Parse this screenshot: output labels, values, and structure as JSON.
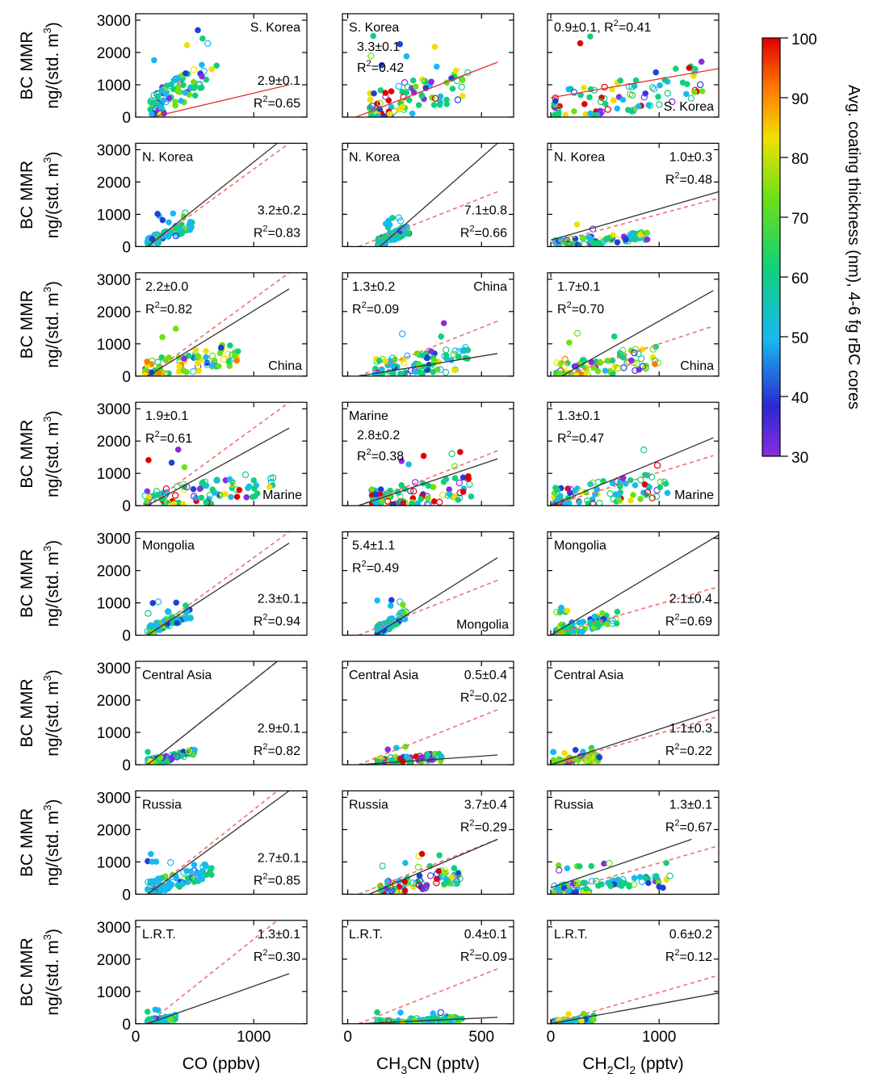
{
  "chart_data": {
    "type": "scatter",
    "y_axis": {
      "label_line1": "BC MMR",
      "label_line2": "ng/(std. m",
      "label_sup": "3",
      "label_close": ")",
      "ylim": [
        0,
        3200
      ],
      "ticks": [
        0,
        1000,
        2000,
        3000
      ]
    },
    "columns": [
      {
        "xlabel_pre": "CO (ppbv)",
        "xlabel_sub": "",
        "xlabel_post": "",
        "xlim": [
          0,
          1450
        ],
        "ticks": [
          0,
          1000
        ],
        "tick_labels": [
          "0",
          "1000"
        ]
      },
      {
        "xlabel_pre": "CH",
        "xlabel_sub": "3",
        "xlabel_post": "CN (pptv)",
        "xlim": [
          -20,
          620
        ],
        "ticks": [
          0,
          500
        ],
        "tick_labels": [
          "0",
          "500"
        ]
      },
      {
        "xlabel_pre": "CH",
        "xlabel_sub": "2",
        "xlabel_post": "Cl",
        "xlabel_sub2": "2",
        "xlabel_post2": " (pptv)",
        "xlim": [
          -30,
          1550
        ],
        "ticks": [
          0,
          1000
        ],
        "tick_labels": [
          "0",
          "1000"
        ]
      }
    ],
    "colorbar": {
      "title": "Avg. coating thickness (nm), 4-6 fg rBC cores",
      "min": 30,
      "max": 100,
      "ticks": [
        30,
        40,
        50,
        60,
        70,
        80,
        90,
        100
      ],
      "colors": [
        "#8a2be2",
        "#1f3fd6",
        "#19b8f0",
        "#10d07a",
        "#6ee014",
        "#f0e000",
        "#ff7a00",
        "#e00000"
      ]
    },
    "panels": [
      {
        "region": "S. Korea",
        "row": 0,
        "col": 0,
        "slope": "2.9±0.1",
        "r2": "0.65",
        "region_pos": "tr",
        "stats_pos": "br",
        "solid": [
          [
            140,
            0
          ],
          [
            1300,
            1000
          ]
        ],
        "solid_color": "red",
        "dashed": null,
        "cloud": {
          "x0": 120,
          "x1": 700,
          "ymax": 2700,
          "bias": 80,
          "tone": "mixed"
        }
      },
      {
        "region": "S. Korea",
        "row": 0,
        "col": 1,
        "slope": "3.3±0.1",
        "r2": "0.42",
        "region_pos": "tl",
        "stats_pos": "tl2",
        "solid": [
          [
            30,
            0
          ],
          [
            560,
            1700
          ]
        ],
        "solid_color": "red",
        "dashed": null,
        "cloud": {
          "x0": 80,
          "x1": 450,
          "ymax": 2600,
          "bias": 60,
          "tone": "mixed_red"
        }
      },
      {
        "region": "S. Korea",
        "row": 0,
        "col": 2,
        "slope": "0.9±0.1",
        "r2": "0.41",
        "region_pos": "br",
        "stats_pos": "top_inline",
        "solid": [
          [
            0,
            600
          ],
          [
            1550,
            1500
          ]
        ],
        "solid_color": "red",
        "dashed": null,
        "cloud": {
          "x0": 30,
          "x1": 1400,
          "ymax": 2800,
          "bias": 60,
          "tone": "mixed_red"
        }
      },
      {
        "region": "N. Korea",
        "row": 1,
        "col": 0,
        "slope": "3.2±0.2",
        "r2": "0.83",
        "region_pos": "tl",
        "stats_pos": "br",
        "solid": [
          [
            100,
            0
          ],
          [
            1200,
            3200
          ]
        ],
        "solid_color": "black",
        "dashed": [
          [
            100,
            0
          ],
          [
            1300,
            3200
          ]
        ],
        "cloud": {
          "x0": 100,
          "x1": 480,
          "ymax": 1050,
          "bias": 92,
          "tone": "cool"
        }
      },
      {
        "region": "N. Korea",
        "row": 1,
        "col": 1,
        "slope": "7.1±0.8",
        "r2": "0.66",
        "region_pos": "tl",
        "stats_pos": "br",
        "solid": [
          [
            120,
            0
          ],
          [
            560,
            3200
          ]
        ],
        "solid_color": "black",
        "dashed": [
          [
            40,
            0
          ],
          [
            560,
            1700
          ]
        ],
        "cloud": {
          "x0": 110,
          "x1": 230,
          "ymax": 900,
          "bias": 85,
          "tone": "cool"
        }
      },
      {
        "region": "N. Korea",
        "row": 1,
        "col": 2,
        "slope": "1.0±0.3",
        "r2": "0.48",
        "region_pos": "tl",
        "stats_pos": "tr",
        "solid": [
          [
            0,
            200
          ],
          [
            1550,
            1700
          ]
        ],
        "solid_color": "black",
        "dashed": [
          [
            0,
            100
          ],
          [
            1550,
            1500
          ]
        ],
        "cloud": {
          "x0": 30,
          "x1": 900,
          "ymax": 700,
          "bias": 70,
          "tone": "mixed"
        }
      },
      {
        "region": "China",
        "row": 2,
        "col": 0,
        "slope": "2.2±0.0",
        "r2": "0.82",
        "region_pos": "br",
        "stats_pos": "tl",
        "solid": [
          [
            100,
            0
          ],
          [
            1300,
            2700
          ]
        ],
        "solid_color": "black",
        "dashed": [
          [
            100,
            0
          ],
          [
            1300,
            3200
          ]
        ],
        "cloud": {
          "x0": 80,
          "x1": 880,
          "ymax": 1700,
          "bias": 60,
          "tone": "warm"
        }
      },
      {
        "region": "China",
        "row": 2,
        "col": 1,
        "slope": "1.3±0.2",
        "r2": "0.09",
        "region_pos": "tr",
        "stats_pos": "tl",
        "solid": [
          [
            40,
            0
          ],
          [
            560,
            700
          ]
        ],
        "solid_color": "black",
        "dashed": [
          [
            40,
            0
          ],
          [
            560,
            1700
          ]
        ],
        "cloud": {
          "x0": 100,
          "x1": 450,
          "ymax": 1700,
          "bias": 45,
          "tone": "mixed"
        }
      },
      {
        "region": "China",
        "row": 2,
        "col": 2,
        "slope": "1.7±0.1",
        "r2": "0.70",
        "region_pos": "br",
        "stats_pos": "tl",
        "solid": [
          [
            100,
            0
          ],
          [
            1500,
            2650
          ]
        ],
        "solid_color": "black",
        "dashed": [
          [
            100,
            0
          ],
          [
            1500,
            1550
          ]
        ],
        "cloud": {
          "x0": 50,
          "x1": 1000,
          "ymax": 1600,
          "bias": 55,
          "tone": "warm"
        }
      },
      {
        "region": "Marine",
        "row": 3,
        "col": 0,
        "slope": "1.9±0.1",
        "r2": "0.61",
        "region_pos": "br",
        "stats_pos": "tl",
        "solid": [
          [
            100,
            0
          ],
          [
            1300,
            2400
          ]
        ],
        "solid_color": "black",
        "dashed": [
          [
            100,
            0
          ],
          [
            1300,
            3200
          ]
        ],
        "cloud": {
          "x0": 80,
          "x1": 1200,
          "ymax": 1800,
          "bias": 55,
          "tone": "mixed_red"
        }
      },
      {
        "region": "Marine",
        "row": 3,
        "col": 1,
        "slope": "2.8±0.2",
        "r2": "0.38",
        "region_pos": "tl",
        "stats_pos": "tl2",
        "solid": [
          [
            40,
            0
          ],
          [
            560,
            1450
          ]
        ],
        "solid_color": "black",
        "dashed": [
          [
            40,
            0
          ],
          [
            560,
            1700
          ]
        ],
        "cloud": {
          "x0": 90,
          "x1": 470,
          "ymax": 1700,
          "bias": 50,
          "tone": "mixed_red"
        }
      },
      {
        "region": "Marine",
        "row": 3,
        "col": 2,
        "slope": "1.3±0.1",
        "r2": "0.47",
        "region_pos": "br",
        "stats_pos": "tl",
        "solid": [
          [
            0,
            0
          ],
          [
            1500,
            2100
          ]
        ],
        "solid_color": "black",
        "dashed": [
          [
            0,
            0
          ],
          [
            1500,
            1550
          ]
        ],
        "cloud": {
          "x0": 30,
          "x1": 1100,
          "ymax": 1800,
          "bias": 55,
          "tone": "mixed_red"
        }
      },
      {
        "region": "Mongolia",
        "row": 4,
        "col": 0,
        "slope": "2.3±0.1",
        "r2": "0.94",
        "region_pos": "tl",
        "stats_pos": "br",
        "solid": [
          [
            100,
            0
          ],
          [
            1300,
            2850
          ]
        ],
        "solid_color": "black",
        "dashed": [
          [
            100,
            0
          ],
          [
            1300,
            3200
          ]
        ],
        "cloud": {
          "x0": 100,
          "x1": 470,
          "ymax": 1050,
          "bias": 92,
          "tone": "cool"
        }
      },
      {
        "region": "Mongolia",
        "row": 4,
        "col": 1,
        "slope": "5.4±1.1",
        "r2": "0.49",
        "region_pos": "br",
        "stats_pos": "tl",
        "solid": [
          [
            100,
            0
          ],
          [
            560,
            2400
          ]
        ],
        "solid_color": "black",
        "dashed": [
          [
            40,
            0
          ],
          [
            560,
            1700
          ]
        ],
        "cloud": {
          "x0": 110,
          "x1": 220,
          "ymax": 1100,
          "bias": 85,
          "tone": "cool"
        }
      },
      {
        "region": "Mongolia",
        "row": 4,
        "col": 2,
        "slope": "2.1±0.4",
        "r2": "0.69",
        "region_pos": "tl",
        "stats_pos": "br",
        "solid": [
          [
            0,
            0
          ],
          [
            1550,
            3100
          ]
        ],
        "solid_color": "black",
        "dashed": [
          [
            0,
            0
          ],
          [
            1550,
            1500
          ]
        ],
        "cloud": {
          "x0": 50,
          "x1": 650,
          "ymax": 1100,
          "bias": 75,
          "tone": "mixed"
        }
      },
      {
        "region": "Central Asia",
        "row": 5,
        "col": 0,
        "slope": "2.9±0.1",
        "r2": "0.82",
        "region_pos": "tl",
        "stats_pos": "br",
        "solid": [
          [
            100,
            0
          ],
          [
            1200,
            3200
          ]
        ],
        "solid_color": "black",
        "dashed": [
          [
            100,
            0
          ],
          [
            1200,
            3200
          ]
        ],
        "cloud": {
          "x0": 100,
          "x1": 500,
          "ymax": 650,
          "bias": 85,
          "tone": "mixed"
        }
      },
      {
        "region": "Central Asia",
        "row": 5,
        "col": 1,
        "slope": "0.5±0.4",
        "r2": "0.02",
        "region_pos": "tl",
        "stats_pos": "tr_inline",
        "solid": [
          [
            40,
            0
          ],
          [
            560,
            300
          ]
        ],
        "solid_color": "black",
        "dashed": [
          [
            40,
            0
          ],
          [
            560,
            1700
          ]
        ],
        "cloud": {
          "x0": 110,
          "x1": 360,
          "ymax": 600,
          "bias": 60,
          "tone": "mixed_red"
        }
      },
      {
        "region": "Central Asia",
        "row": 5,
        "col": 2,
        "slope": "1.1±0.3",
        "r2": "0.22",
        "region_pos": "tl",
        "stats_pos": "br",
        "solid": [
          [
            0,
            0
          ],
          [
            1550,
            1700
          ]
        ],
        "solid_color": "black",
        "dashed": [
          [
            0,
            0
          ],
          [
            1550,
            1500
          ]
        ],
        "cloud": {
          "x0": 20,
          "x1": 450,
          "ymax": 550,
          "bias": 60,
          "tone": "warm"
        }
      },
      {
        "region": "Russia",
        "row": 6,
        "col": 0,
        "slope": "2.7±0.1",
        "r2": "0.85",
        "region_pos": "tl",
        "stats_pos": "br",
        "solid": [
          [
            100,
            0
          ],
          [
            1300,
            3200
          ]
        ],
        "solid_color": "black",
        "dashed": [
          [
            100,
            0
          ],
          [
            1200,
            3200
          ]
        ],
        "cloud": {
          "x0": 100,
          "x1": 650,
          "ymax": 1400,
          "bias": 80,
          "tone": "cool"
        }
      },
      {
        "region": "Russia",
        "row": 6,
        "col": 1,
        "slope": "3.7±0.4",
        "r2": "0.29",
        "region_pos": "tl",
        "stats_pos": "tr",
        "solid": [
          [
            80,
            0
          ],
          [
            560,
            1700
          ]
        ],
        "solid_color": "black",
        "dashed": [
          [
            40,
            0
          ],
          [
            560,
            1700
          ]
        ],
        "cloud": {
          "x0": 120,
          "x1": 420,
          "ymax": 1300,
          "bias": 65,
          "tone": "mixed_red"
        }
      },
      {
        "region": "Russia",
        "row": 6,
        "col": 2,
        "slope": "1.3±0.1",
        "r2": "0.67",
        "region_pos": "tl",
        "stats_pos": "tr",
        "solid": [
          [
            0,
            200
          ],
          [
            1300,
            1700
          ]
        ],
        "solid_color": "black",
        "dashed": [
          [
            0,
            0
          ],
          [
            1550,
            1500
          ]
        ],
        "cloud": {
          "x0": 30,
          "x1": 1100,
          "ymax": 1000,
          "bias": 60,
          "tone": "mixed"
        }
      },
      {
        "region": "L.R.T.",
        "row": 7,
        "col": 0,
        "slope": "1.3±0.1",
        "r2": "0.30",
        "region_pos": "tl",
        "stats_pos": "tr",
        "solid": [
          [
            100,
            0
          ],
          [
            1300,
            1550
          ]
        ],
        "solid_color": "black",
        "dashed": [
          [
            100,
            0
          ],
          [
            1200,
            3200
          ]
        ],
        "cloud": {
          "x0": 100,
          "x1": 350,
          "ymax": 450,
          "bias": 70,
          "tone": "cool"
        }
      },
      {
        "region": "L.R.T.",
        "row": 7,
        "col": 1,
        "slope": "0.4±0.1",
        "r2": "0.09",
        "region_pos": "tl",
        "stats_pos": "tr",
        "solid": [
          [
            40,
            0
          ],
          [
            560,
            200
          ]
        ],
        "solid_color": "black",
        "dashed": [
          [
            40,
            0
          ],
          [
            560,
            1700
          ]
        ],
        "cloud": {
          "x0": 110,
          "x1": 430,
          "ymax": 380,
          "bias": 55,
          "tone": "mixed"
        }
      },
      {
        "region": "L.R.T.",
        "row": 7,
        "col": 2,
        "slope": "0.6±0.2",
        "r2": "0.12",
        "region_pos": "tl",
        "stats_pos": "tr",
        "solid": [
          [
            0,
            0
          ],
          [
            1550,
            950
          ]
        ],
        "solid_color": "black",
        "dashed": [
          [
            0,
            0
          ],
          [
            1550,
            1500
          ]
        ],
        "cloud": {
          "x0": 30,
          "x1": 400,
          "ymax": 350,
          "bias": 60,
          "tone": "mixed"
        }
      }
    ]
  }
}
